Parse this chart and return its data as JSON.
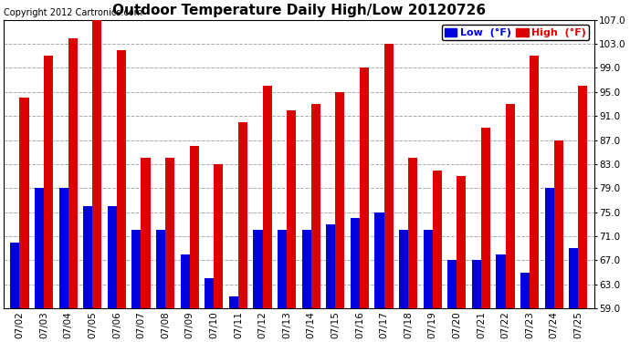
{
  "title": "Outdoor Temperature Daily High/Low 20120726",
  "copyright": "Copyright 2012 Cartronics.com",
  "legend_low": "Low  (°F)",
  "legend_high": "High  (°F)",
  "dates": [
    "07/02",
    "07/03",
    "07/04",
    "07/05",
    "07/06",
    "07/07",
    "07/08",
    "07/09",
    "07/10",
    "07/11",
    "07/12",
    "07/13",
    "07/14",
    "07/15",
    "07/16",
    "07/17",
    "07/18",
    "07/19",
    "07/20",
    "07/21",
    "07/22",
    "07/23",
    "07/24",
    "07/25"
  ],
  "high": [
    94,
    101,
    104,
    107,
    102,
    84,
    84,
    86,
    83,
    90,
    96,
    92,
    93,
    95,
    99,
    103,
    84,
    82,
    81,
    89,
    93,
    101,
    87,
    96
  ],
  "low": [
    70,
    79,
    79,
    76,
    76,
    72,
    72,
    68,
    64,
    61,
    72,
    72,
    72,
    73,
    74,
    75,
    72,
    72,
    67,
    67,
    68,
    65,
    79,
    69
  ],
  "ybase": 59.0,
  "ylim": [
    59.0,
    107.0
  ],
  "yticks": [
    59.0,
    63.0,
    67.0,
    71.0,
    75.0,
    79.0,
    83.0,
    87.0,
    91.0,
    95.0,
    99.0,
    103.0,
    107.0
  ],
  "bar_width": 0.38,
  "low_color": "#0000dd",
  "high_color": "#dd0000",
  "background_color": "#ffffff",
  "grid_color": "#aaaaaa",
  "title_fontsize": 11,
  "tick_fontsize": 7.5,
  "legend_fontsize": 8,
  "copyright_fontsize": 7
}
